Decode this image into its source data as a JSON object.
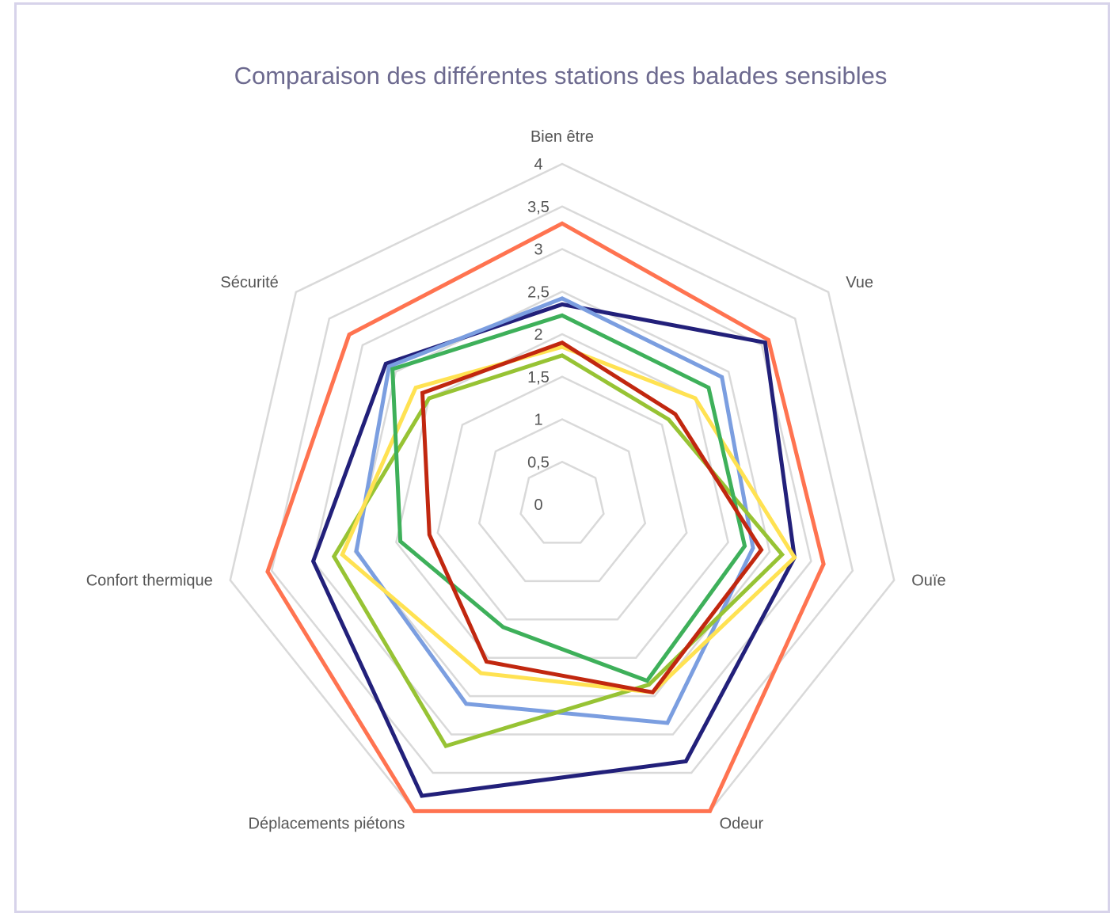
{
  "chart_data": {
    "type": "radar",
    "title": "Comparaison des différentes stations des balades sensibles",
    "axes": [
      "Bien être",
      "Vue",
      "Ouïe",
      "Odeur",
      "Déplacements piétons",
      "Confort thermique",
      "Sécurité"
    ],
    "ticks": [
      "0",
      "0,5",
      "1",
      "1,5",
      "2",
      "2,5",
      "3",
      "3,5",
      "4"
    ],
    "rlim": [
      0,
      4
    ],
    "grid": true,
    "legend": "none",
    "series": [
      {
        "color": "#ff7350",
        "values": [
          3.3,
          3.1,
          3.15,
          4.0,
          4.0,
          3.55,
          3.2
        ]
      },
      {
        "color": "#22207a",
        "values": [
          2.35,
          3.05,
          2.8,
          3.35,
          3.8,
          3.0,
          2.65
        ]
      },
      {
        "color": "#7b9ee0",
        "values": [
          2.42,
          2.4,
          2.3,
          2.85,
          2.6,
          2.48,
          2.6
        ]
      },
      {
        "color": "#97c334",
        "values": [
          1.75,
          1.6,
          2.65,
          2.35,
          3.15,
          2.75,
          2.0
        ]
      },
      {
        "color": "#ffe252",
        "values": [
          1.85,
          2.0,
          2.8,
          2.45,
          2.2,
          2.65,
          2.2
        ]
      },
      {
        "color": "#3eb05a",
        "values": [
          2.22,
          2.2,
          2.2,
          2.3,
          1.6,
          1.95,
          2.55
        ]
      },
      {
        "color": "#c1270f",
        "values": [
          1.9,
          1.7,
          2.4,
          2.45,
          2.05,
          1.6,
          2.1
        ]
      }
    ]
  }
}
